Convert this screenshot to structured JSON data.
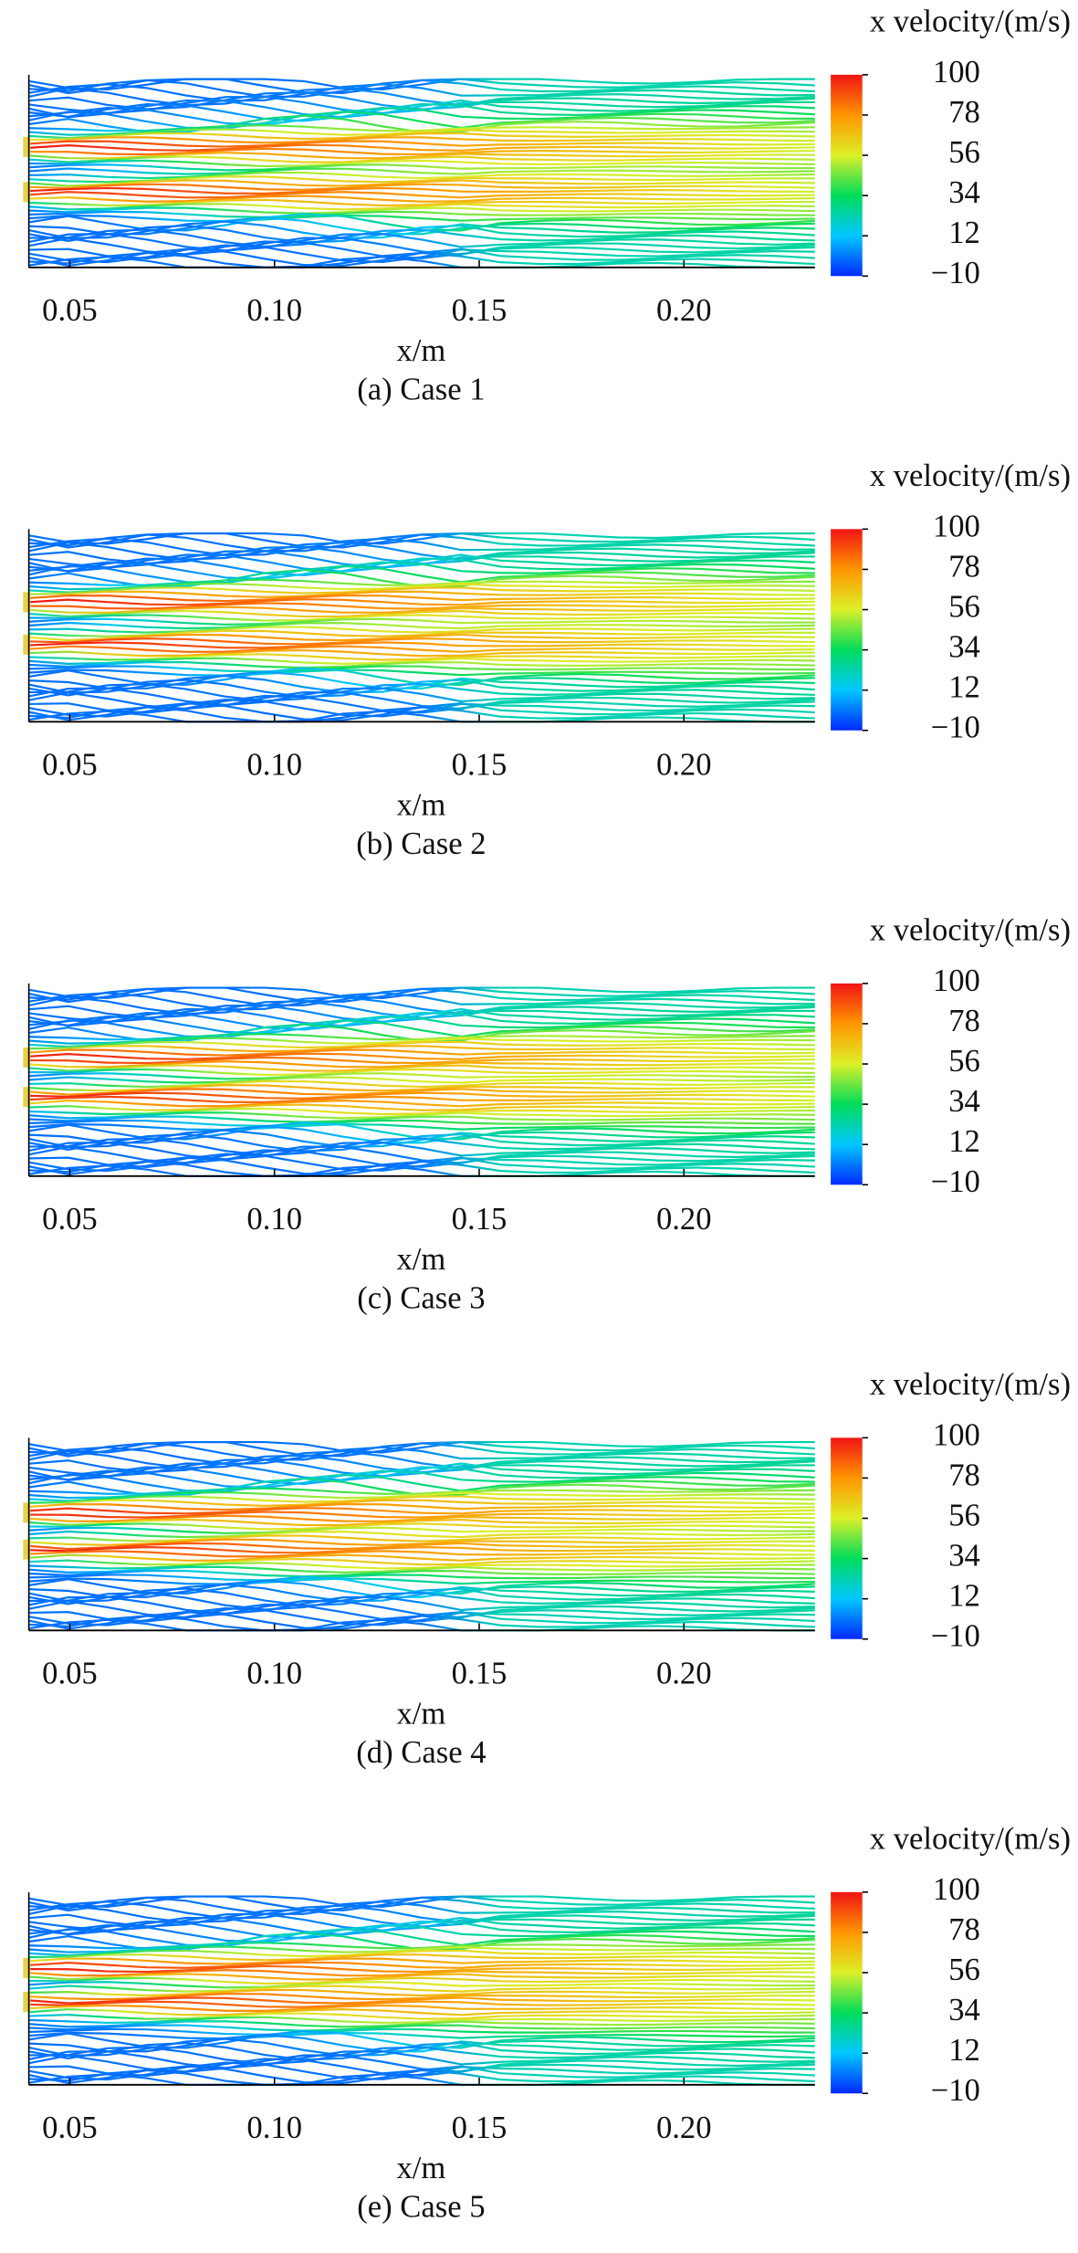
{
  "chart_data": [
    {
      "type": "streamline",
      "colorbar_label": "x velocity/(m/s)",
      "xlabel": "x/m",
      "caption": "(a) Case 1",
      "xlim": [
        0.04,
        0.232
      ],
      "xticks": [
        0.05,
        {
          "value": 0.1,
          "label": "0.10"
        },
        0.15,
        {
          "value": 0.2,
          "label": "0.20"
        }
      ],
      "clim": [
        -10,
        100
      ],
      "cticks": [
        100,
        78,
        56,
        34,
        12,
        {
          "value": -10,
          "label": "−10"
        }
      ]
    },
    {
      "type": "streamline",
      "colorbar_label": "x velocity/(m/s)",
      "xlabel": "x/m",
      "caption": "(b) Case 2",
      "xlim": [
        0.04,
        0.232
      ],
      "xticks": [
        0.05,
        {
          "value": 0.1,
          "label": "0.10"
        },
        0.15,
        {
          "value": 0.2,
          "label": "0.20"
        }
      ],
      "clim": [
        -10,
        100
      ],
      "cticks": [
        100,
        78,
        56,
        34,
        12,
        {
          "value": -10,
          "label": "−10"
        }
      ]
    },
    {
      "type": "streamline",
      "colorbar_label": "x velocity/(m/s)",
      "xlabel": "x/m",
      "caption": "(c) Case 3",
      "xlim": [
        0.04,
        0.232
      ],
      "xticks": [
        0.05,
        {
          "value": 0.1,
          "label": "0.10"
        },
        0.15,
        {
          "value": 0.2,
          "label": "0.20"
        }
      ],
      "clim": [
        -10,
        100
      ],
      "cticks": [
        100,
        78,
        56,
        34,
        12,
        {
          "value": -10,
          "label": "−10"
        }
      ]
    },
    {
      "type": "streamline",
      "colorbar_label": "x velocity/(m/s)",
      "xlabel": "x/m",
      "caption": "(d) Case 4",
      "xlim": [
        0.04,
        0.232
      ],
      "xticks": [
        0.05,
        {
          "value": 0.1,
          "label": "0.10"
        },
        0.15,
        {
          "value": 0.2,
          "label": "0.20"
        }
      ],
      "clim": [
        -10,
        100
      ],
      "cticks": [
        100,
        78,
        56,
        34,
        12,
        {
          "value": -10,
          "label": "−10"
        }
      ]
    },
    {
      "type": "streamline",
      "colorbar_label": "x velocity/(m/s)",
      "xlabel": "x/m",
      "caption": "(e) Case 5",
      "xlim": [
        0.04,
        0.232
      ],
      "xticks": [
        0.05,
        {
          "value": 0.1,
          "label": "0.10"
        },
        0.15,
        {
          "value": 0.2,
          "label": "0.20"
        }
      ],
      "clim": [
        -10,
        100
      ],
      "cticks": [
        100,
        78,
        56,
        34,
        12,
        {
          "value": -10,
          "label": "−10"
        }
      ]
    }
  ]
}
